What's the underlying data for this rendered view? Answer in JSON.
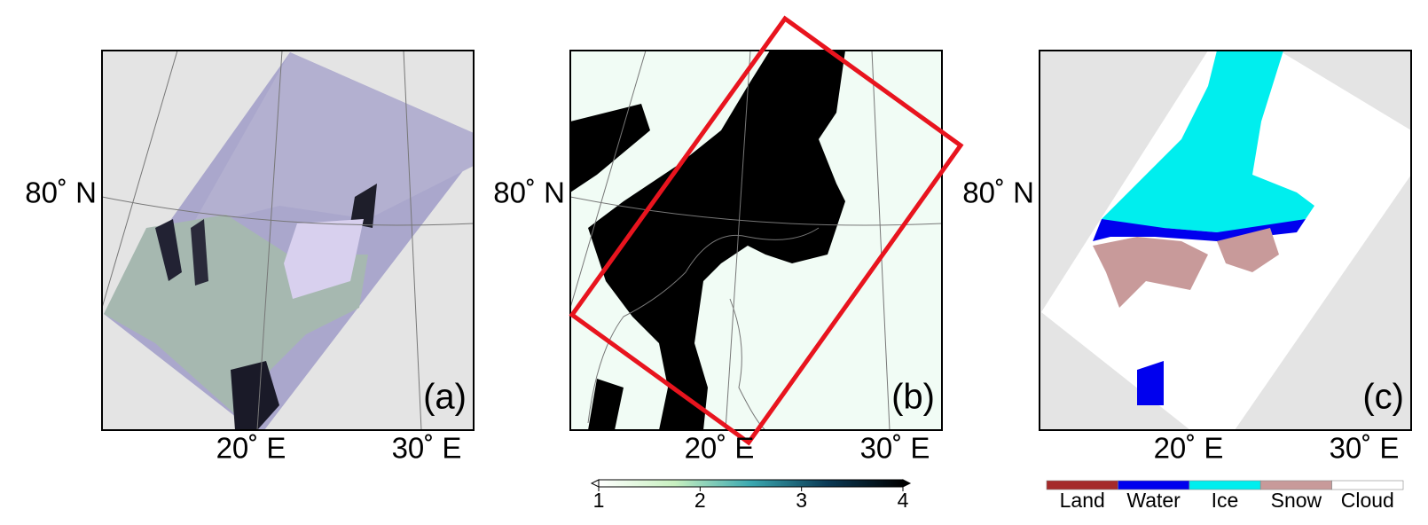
{
  "panels": [
    {
      "label": "(a)",
      "lat_label": "80˚ N",
      "lon_labels": [
        "20˚ E",
        "30˚ E"
      ]
    },
    {
      "label": "(b)",
      "lat_label": "80˚ N",
      "lon_labels": [
        "20˚ E",
        "30˚ E"
      ]
    },
    {
      "label": "(c)",
      "lat_label": "80˚ N",
      "lon_labels": [
        "20˚ E",
        "30˚ E"
      ]
    }
  ],
  "colorbar": {
    "lim": [
      1,
      4
    ],
    "ticks": [
      1,
      2,
      3,
      4
    ]
  },
  "legend": [
    {
      "name": "Land",
      "color": "#a52a2a"
    },
    {
      "name": "Water",
      "color": "#0000ee"
    },
    {
      "name": "Ice",
      "color": "#00eeee"
    },
    {
      "name": "Snow",
      "color": "#c89a9a"
    },
    {
      "name": "Cloud",
      "color": "#ffffff"
    }
  ]
}
